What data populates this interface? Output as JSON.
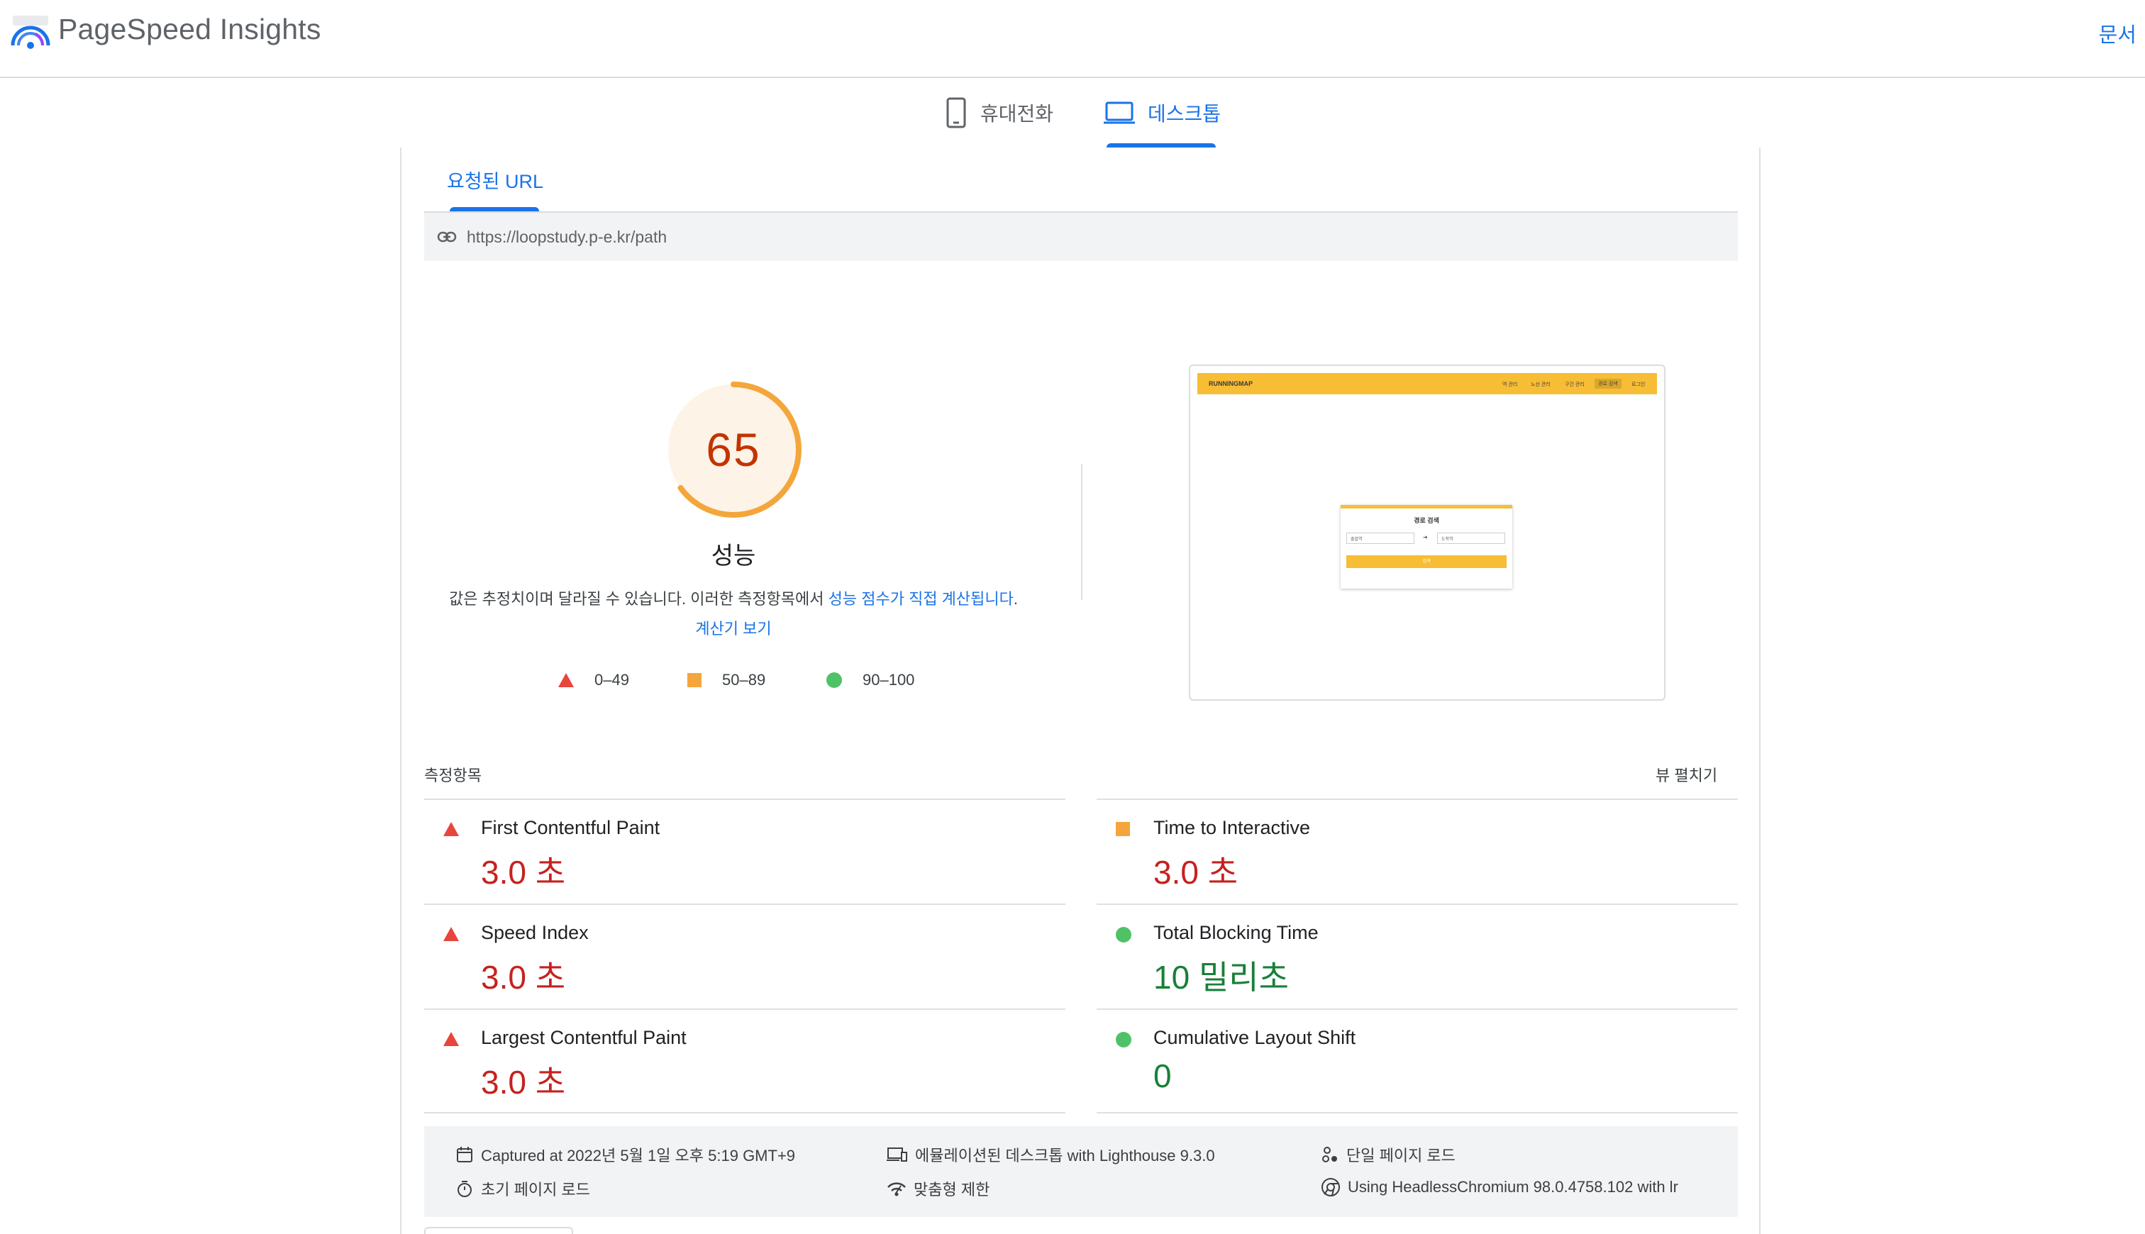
{
  "app": {
    "title": "PageSpeed Insights",
    "docs_label": "문서"
  },
  "device_tabs": {
    "mobile_label": "휴대전화",
    "desktop_label": "데스크톱",
    "selected": "desktop"
  },
  "url_section": {
    "tab_label": "요청된 URL",
    "url": "https://loopstudy.p-e.kr/path"
  },
  "performance": {
    "score": "65",
    "score_fraction": 0.65,
    "label": "성능",
    "disclaimer_text": "값은 추정치이며 달라질 수 있습니다. 이러한 측정항목에서 ",
    "disclaimer_link_1": "성능 점수가 직접 계산됩니다",
    "disclaimer_link_2": "계산기 보기",
    "legend": {
      "poor": "0–49",
      "average": "50–89",
      "good": "90–100"
    },
    "colors": {
      "average": "#f4a63b",
      "poor": "#e8453c",
      "good": "#4fc267",
      "score_text": "#c33300",
      "gauge_fill": "#fdf3e6"
    }
  },
  "screenshot": {
    "brand": "RUNNINGMAP",
    "nav_items": [
      "역 관리",
      "노선 관리",
      "구간 관리",
      "경로 검색",
      "로그인"
    ],
    "card_title": "경로 검색",
    "from_placeholder": "출발역",
    "to_placeholder": "도착역",
    "search_button": "검색"
  },
  "metrics": {
    "header": "측정항목",
    "expand_label": "뷰 펼치기",
    "items": [
      {
        "name": "First Contentful Paint",
        "value": "3.0 초",
        "status": "poor"
      },
      {
        "name": "Time to Interactive",
        "value": "3.0 초",
        "status": "average"
      },
      {
        "name": "Speed Index",
        "value": "3.0 초",
        "status": "poor"
      },
      {
        "name": "Total Blocking Time",
        "value": "10 밀리초",
        "status": "good"
      },
      {
        "name": "Largest Contentful Paint",
        "value": "3.0 초",
        "status": "poor"
      },
      {
        "name": "Cumulative Layout Shift",
        "value": "0",
        "status": "good"
      }
    ]
  },
  "run_info": {
    "captured": "Captured at 2022년 5월 1일 오후 5:19 GMT+9",
    "initial_load": "초기 페이지 로드",
    "emulated": "에뮬레이션된 데스크톱 with Lighthouse 9.3.0",
    "throttling": "맞춤형 제한",
    "single_load": "단일 페이지 로드",
    "browser": "Using HeadlessChromium 98.0.4758.102 with lr"
  }
}
